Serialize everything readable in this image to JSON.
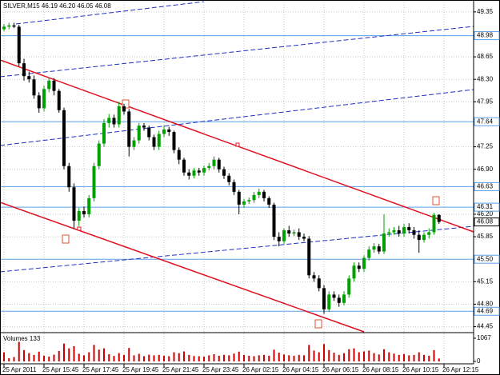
{
  "chart_data": {
    "type": "candlestick",
    "title": "SILVER,M15",
    "last_labels": {
      "open": "46.19",
      "high": "46.20",
      "low": "46.05",
      "close": "46.08"
    },
    "open": [
      49.08,
      49.12,
      49.14,
      49.12,
      48.55,
      48.35,
      48.3,
      48.05,
      47.85,
      48.15,
      48.28,
      48.12,
      47.82,
      46.95,
      46.62,
      46.1,
      46.25,
      46.2,
      46.45,
      46.95,
      47.3,
      47.62,
      47.7,
      47.6,
      47.88,
      47.8,
      47.25,
      47.35,
      47.58,
      47.55,
      47.4,
      47.25,
      47.45,
      47.52,
      47.48,
      47.2,
      47.05,
      46.85,
      46.8,
      46.88,
      46.85,
      46.92,
      46.95,
      47.05,
      46.9,
      46.8,
      46.7,
      46.55,
      46.35,
      46.4,
      46.42,
      46.5,
      46.55,
      46.45,
      46.35,
      45.85,
      45.78,
      45.95,
      45.9,
      45.92,
      45.85,
      45.82,
      45.25,
      45.2,
      45.05,
      44.72,
      44.95,
      44.9,
      44.82,
      44.95,
      45.2,
      45.4,
      45.35,
      45.52,
      45.65,
      45.7,
      45.62,
      45.9,
      45.92,
      45.95,
      45.9,
      46.0,
      45.95,
      45.88,
      45.8,
      45.88,
      45.92,
      46.19
    ],
    "high": [
      49.16,
      49.18,
      49.18,
      49.15,
      48.62,
      48.42,
      48.36,
      48.1,
      48.2,
      48.33,
      48.32,
      48.15,
      47.86,
      47.0,
      46.68,
      46.3,
      46.32,
      46.5,
      47.0,
      47.35,
      47.68,
      47.76,
      47.75,
      47.95,
      47.92,
      47.84,
      47.4,
      47.62,
      47.62,
      47.58,
      47.44,
      47.5,
      47.58,
      47.56,
      47.5,
      47.24,
      47.08,
      46.9,
      46.92,
      46.92,
      46.96,
      47.0,
      47.1,
      47.08,
      46.94,
      46.84,
      46.74,
      46.58,
      46.44,
      46.46,
      46.55,
      46.6,
      46.58,
      46.48,
      46.38,
      45.92,
      45.98,
      46.02,
      45.96,
      45.98,
      45.9,
      45.86,
      45.3,
      45.25,
      45.1,
      45.0,
      45.0,
      44.95,
      45.0,
      45.25,
      45.45,
      45.45,
      45.56,
      45.7,
      45.75,
      45.74,
      46.2,
      45.98,
      46.0,
      46.02,
      46.05,
      46.06,
      46.0,
      45.95,
      45.92,
      45.98,
      46.22,
      46.2
    ],
    "low": [
      49.05,
      49.08,
      49.1,
      48.5,
      48.28,
      48.25,
      48.0,
      47.78,
      47.8,
      48.1,
      48.05,
      47.78,
      46.9,
      46.55,
      45.98,
      46.02,
      46.15,
      46.15,
      46.4,
      46.9,
      47.25,
      47.55,
      47.55,
      47.55,
      47.75,
      47.1,
      47.2,
      47.3,
      47.5,
      47.35,
      47.2,
      47.2,
      47.4,
      47.42,
      47.15,
      46.98,
      46.8,
      46.74,
      46.76,
      46.8,
      46.8,
      46.88,
      46.9,
      46.85,
      46.75,
      46.65,
      46.5,
      46.2,
      46.3,
      46.36,
      46.38,
      46.45,
      46.4,
      46.3,
      45.8,
      45.7,
      45.74,
      45.85,
      45.86,
      45.8,
      45.78,
      45.2,
      45.15,
      45.0,
      44.65,
      44.68,
      44.85,
      44.76,
      44.78,
      44.9,
      45.15,
      45.3,
      45.3,
      45.48,
      45.6,
      45.58,
      45.58,
      45.85,
      45.88,
      45.85,
      45.85,
      45.9,
      45.82,
      45.6,
      45.76,
      45.82,
      45.88,
      46.05
    ],
    "close": [
      49.12,
      49.14,
      49.12,
      48.55,
      48.35,
      48.3,
      48.05,
      47.85,
      48.15,
      48.28,
      48.12,
      47.82,
      46.95,
      46.62,
      46.1,
      46.25,
      46.2,
      46.45,
      46.95,
      47.3,
      47.62,
      47.7,
      47.6,
      47.88,
      47.8,
      47.25,
      47.35,
      47.58,
      47.55,
      47.4,
      47.25,
      47.45,
      47.52,
      47.48,
      47.2,
      47.05,
      46.85,
      46.8,
      46.88,
      46.85,
      46.92,
      46.95,
      47.05,
      46.9,
      46.8,
      46.7,
      46.55,
      46.35,
      46.4,
      46.42,
      46.5,
      46.55,
      46.45,
      46.35,
      45.85,
      45.78,
      45.95,
      45.9,
      45.92,
      45.85,
      45.82,
      45.25,
      45.2,
      45.05,
      44.72,
      44.95,
      44.9,
      44.82,
      44.95,
      45.2,
      45.4,
      45.35,
      45.52,
      45.65,
      45.7,
      45.62,
      45.9,
      45.92,
      45.95,
      45.9,
      46.0,
      45.95,
      45.88,
      45.8,
      45.88,
      45.92,
      46.19,
      46.08
    ],
    "up_color": "#00a000",
    "down_color": "#000000",
    "ylim": [
      44.37,
      49.51
    ],
    "yticks": [
      49.35,
      48.65,
      {
        "value": 48.3,
        "label": "48.30"
      },
      47.95,
      47.25,
      {
        "value": 46.9,
        "label": "46.90"
      },
      {
        "value": 46.2,
        "label": "46.20"
      },
      45.85,
      45.15,
      {
        "value": 44.8,
        "label": "44.80"
      },
      44.45
    ],
    "grid": true,
    "levels": [
      48.98,
      47.64,
      46.63,
      46.31,
      {
        "value": 45.5,
        "label": "45.50"
      },
      44.69
    ],
    "level_color": "#5aa0e6",
    "time_labels": [
      "25 Apr 2011",
      "25 Apr 15:45",
      "25 Apr 17:45",
      "25 Apr 19:45",
      "25 Apr 21:45",
      "25 Apr 23:45",
      "26 Apr 02:15",
      "26 Apr 04:15",
      "26 Apr 06:15",
      "26 Apr 08:15",
      "26 Apr 10:15",
      "26 Apr 12:15"
    ],
    "volume": {
      "label": "Volumes",
      "color": "#cc0000",
      "values": [
        420,
        150,
        200,
        900,
        520,
        380,
        300,
        450,
        260,
        220,
        310,
        480,
        820,
        600,
        700,
        350,
        280,
        420,
        760,
        540,
        600,
        330,
        250,
        380,
        300,
        620,
        280,
        350,
        240,
        310,
        280,
        300,
        260,
        240,
        420,
        380,
        460,
        300,
        250,
        240,
        220,
        280,
        330,
        260,
        300,
        280,
        360,
        450,
        300,
        260,
        240,
        280,
        300,
        260,
        540,
        400,
        320,
        280,
        260,
        300,
        280,
        760,
        500,
        420,
        800,
        520,
        400,
        300,
        380,
        560,
        600,
        420,
        460,
        500,
        380,
        320,
        560,
        420,
        360,
        300,
        340,
        280,
        300,
        420,
        300,
        260,
        520,
        133
      ],
      "ylim": [
        0,
        1067
      ],
      "yticks": [
        1067,
        0
      ]
    }
  }
}
